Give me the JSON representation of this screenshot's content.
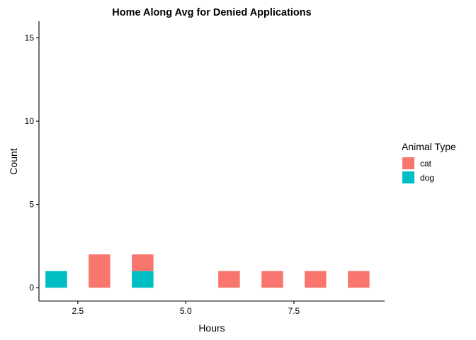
{
  "chart_data": {
    "type": "bar",
    "title": "Home Along Avg for Denied Applications",
    "xlabel": "Hours",
    "ylabel": "Count",
    "xlim": [
      1.6,
      9.6
    ],
    "ylim": [
      -0.8,
      16
    ],
    "x_ticks": [
      2.5,
      5.0,
      7.5
    ],
    "x_tick_labels": [
      "2.5",
      "5.0",
      "7.5"
    ],
    "y_ticks": [
      0,
      5,
      10,
      15
    ],
    "y_tick_labels": [
      "0",
      "5",
      "10",
      "15"
    ],
    "bin_width": 0.5,
    "stacked": true,
    "grid": false,
    "legend": {
      "title": "Animal Type",
      "position": "right"
    },
    "series": [
      {
        "name": "cat",
        "color": "#F8766D",
        "bins": [
          {
            "x": 3.0,
            "value": 2
          },
          {
            "x": 4.0,
            "value": 1
          },
          {
            "x": 6.0,
            "value": 1
          },
          {
            "x": 7.0,
            "value": 1
          },
          {
            "x": 8.0,
            "value": 1
          },
          {
            "x": 9.0,
            "value": 1
          }
        ]
      },
      {
        "name": "dog",
        "color": "#00BFC4",
        "bins": [
          {
            "x": 2.0,
            "value": 1
          },
          {
            "x": 4.0,
            "value": 1
          }
        ]
      }
    ],
    "stack_order": [
      "dog",
      "cat"
    ]
  }
}
